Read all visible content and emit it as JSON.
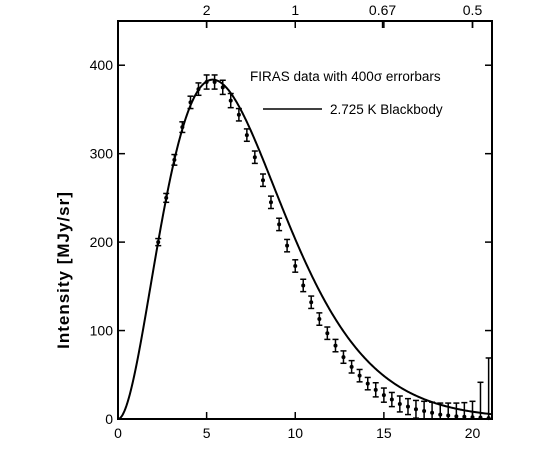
{
  "chart_data": {
    "type": "line",
    "xlabel": "",
    "ylabel": "Intensity [MJy/sr]",
    "xlim": [
      0,
      21.1
    ],
    "ylim": [
      0,
      450
    ],
    "x_ticks": [
      0,
      5,
      10,
      15,
      20
    ],
    "y_ticks": [
      0,
      100,
      200,
      300,
      400
    ],
    "top_axis": {
      "tick_labels": [
        "2",
        "1",
        "0.67",
        "0.5"
      ],
      "tick_values": [
        2,
        1,
        0.67,
        0.5
      ]
    },
    "grid": false,
    "legend": {
      "placement": "top-right",
      "entries": [
        {
          "label": "FIRAS data with 400σ errorbars",
          "marker": "errorbar"
        },
        {
          "label": "2.725 K Blackbody",
          "marker": "line"
        }
      ]
    },
    "series": [
      {
        "name": "FIRAS data with 400σ errorbars",
        "kind": "errorbar",
        "x": [
          2.27,
          2.72,
          3.18,
          3.63,
          4.09,
          4.54,
          5.0,
          5.45,
          5.91,
          6.36,
          6.82,
          7.27,
          7.72,
          8.18,
          8.63,
          9.09,
          9.54,
          10.0,
          10.45,
          10.9,
          11.36,
          11.81,
          12.27,
          12.72,
          13.18,
          13.63,
          14.09,
          14.54,
          15.0,
          15.45,
          15.9,
          16.36,
          16.81,
          17.27,
          17.72,
          18.18,
          18.63,
          19.09,
          19.54,
          20.0,
          20.45,
          20.91
        ],
        "y": [
          200,
          250,
          293,
          330,
          358,
          373,
          381,
          381,
          375,
          360,
          344,
          321,
          296,
          270,
          245,
          220,
          196,
          173,
          151,
          132,
          113,
          97,
          83,
          70,
          59,
          49,
          40,
          33,
          27,
          22,
          17,
          14,
          11,
          9,
          7,
          5,
          4,
          3,
          2.5,
          2,
          1.5,
          1
        ],
        "err": [
          4,
          5,
          6,
          6,
          7,
          7,
          8,
          8,
          8,
          8,
          7,
          7,
          7,
          7,
          7,
          7,
          7,
          7,
          7,
          7,
          7,
          7,
          7,
          7,
          7,
          7,
          7,
          8,
          8,
          8,
          9,
          9,
          10,
          11,
          12,
          13,
          14,
          15,
          16,
          18,
          40,
          68
        ]
      },
      {
        "name": "2.725 K Blackbody",
        "kind": "line",
        "temperature_K": 2.725
      }
    ]
  }
}
